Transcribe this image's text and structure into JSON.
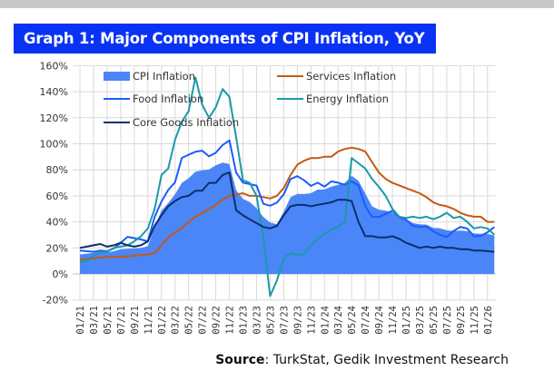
{
  "title": "Graph 1: Major Components of CPI Inflation, YoY",
  "source": {
    "label": "Source",
    "text": ": TurkStat, Gedik Investment Research"
  },
  "chart_data": {
    "type": "line",
    "title": "Graph 1: Major Components of CPI Inflation, YoY",
    "xlabel": "",
    "ylabel": "",
    "ylim": [
      -20,
      160
    ],
    "yticks": [
      "160%",
      "140%",
      "120%",
      "100%",
      "80%",
      "60%",
      "40%",
      "20%",
      "0%",
      "-20%"
    ],
    "ytick_values": [
      160,
      140,
      120,
      100,
      80,
      60,
      40,
      20,
      0,
      -20
    ],
    "x_start": "01/21",
    "x_end": "02/26",
    "xtick_labels": [
      "01/21",
      "03/21",
      "05/21",
      "07/21",
      "09/21",
      "11/21",
      "01/22",
      "03/22",
      "05/22",
      "07/22",
      "09/22",
      "11/22",
      "01/23",
      "03/23",
      "05/23",
      "07/23",
      "09/23",
      "11/23",
      "01/24",
      "03/24",
      "05/24",
      "07/24",
      "09/24",
      "11/24",
      "01/25",
      "03/25",
      "05/25",
      "07/25",
      "09/25",
      "11/25",
      "01/26"
    ],
    "grid": true,
    "legend": "top",
    "series": [
      {
        "name": "CPI Inflation",
        "style": "area",
        "color": "#4a86f7",
        "values": [
          15,
          15.6,
          16.2,
          17.1,
          16.6,
          17.5,
          19,
          19.3,
          19.6,
          19.9,
          21.3,
          36.1,
          48.7,
          54.4,
          61.1,
          70,
          73.5,
          78.6,
          79.6,
          80.2,
          83.5,
          85.5,
          84.4,
          64.3,
          57.7,
          55.2,
          50.5,
          43.7,
          39.6,
          38.2,
          47.8,
          58.9,
          61.5,
          61.4,
          62,
          64.8,
          64.9,
          67.1,
          68.5,
          69.8,
          75.5,
          71.6,
          61.8,
          52,
          49.4,
          48.6,
          47.1,
          44.4,
          42.1,
          39.1,
          38.1,
          37.9,
          35.4,
          35.1,
          33.5,
          33,
          33.3,
          32.9,
          31.1,
          30.9,
          30.7,
          29.5
        ]
      },
      {
        "name": "Services Inflation",
        "style": "line",
        "color": "#c55a11",
        "values": [
          11,
          11.5,
          12,
          12.5,
          13,
          13,
          13,
          13.5,
          14,
          14.5,
          15,
          16,
          22,
          28,
          32,
          35,
          40,
          44,
          47,
          50,
          53,
          57,
          60,
          61,
          62,
          60,
          60,
          59,
          58,
          60,
          66,
          76,
          84,
          87,
          89,
          89,
          90,
          90,
          94,
          96,
          97,
          96,
          94,
          86,
          78,
          73,
          70,
          68,
          66,
          64,
          62,
          59,
          55,
          53,
          52,
          50,
          47,
          45,
          44,
          44,
          40,
          40
        ]
      },
      {
        "name": "Food Inflation",
        "style": "line",
        "color": "#1a5cff",
        "values": [
          18,
          17.5,
          17,
          18,
          17.5,
          19.5,
          24,
          28.5,
          27.5,
          26.5,
          25,
          43.8,
          55.6,
          64.5,
          70.3,
          89.1,
          91.6,
          93.9,
          94.7,
          90.3,
          93.1,
          99,
          102.6,
          77.9,
          70.2,
          69,
          67.9,
          53.9,
          52.4,
          54.8,
          61.1,
          72.9,
          75.1,
          72,
          67.6,
          70.1,
          67.1,
          71.1,
          70.1,
          68.5,
          71,
          68.1,
          52.1,
          43.9,
          43.7,
          46.1,
          48.6,
          43.6,
          41.8,
          37,
          36.1,
          36.5,
          32.9,
          30.2,
          28.3,
          33,
          36.1,
          34.9,
          28.9,
          29.3,
          32,
          36
        ]
      },
      {
        "name": "Energy Inflation",
        "style": "line",
        "color": "#1a9aa8",
        "values": [
          9,
          10,
          14,
          17,
          17,
          20,
          21,
          22,
          25,
          29,
          35,
          50,
          76,
          81,
          103,
          117,
          125,
          151,
          130,
          120,
          128,
          142,
          136,
          105,
          72,
          70,
          60,
          28,
          -17,
          -5,
          12,
          16,
          15,
          15,
          22,
          27,
          31,
          34,
          36,
          40,
          89,
          85,
          81,
          73,
          67,
          60,
          50,
          44,
          43,
          44,
          43,
          44,
          42,
          44,
          47,
          43,
          44,
          40,
          35,
          36,
          35,
          30
        ]
      },
      {
        "name": "Core Goods Inflation",
        "style": "line",
        "color": "#0d2f6b",
        "values": [
          20,
          21,
          22,
          23,
          21,
          22,
          24,
          22,
          21,
          22,
          25,
          37,
          45,
          52,
          56,
          59,
          60,
          64,
          64,
          70,
          70,
          76,
          78,
          49,
          45,
          42,
          39,
          36,
          35,
          37,
          45,
          52,
          53,
          53,
          52,
          53,
          54,
          55,
          57,
          57,
          56,
          40,
          29,
          29,
          28,
          28,
          29,
          27,
          24,
          22,
          20,
          21,
          20,
          21,
          20,
          20,
          19,
          19,
          18,
          18,
          17.5,
          17
        ]
      }
    ]
  }
}
